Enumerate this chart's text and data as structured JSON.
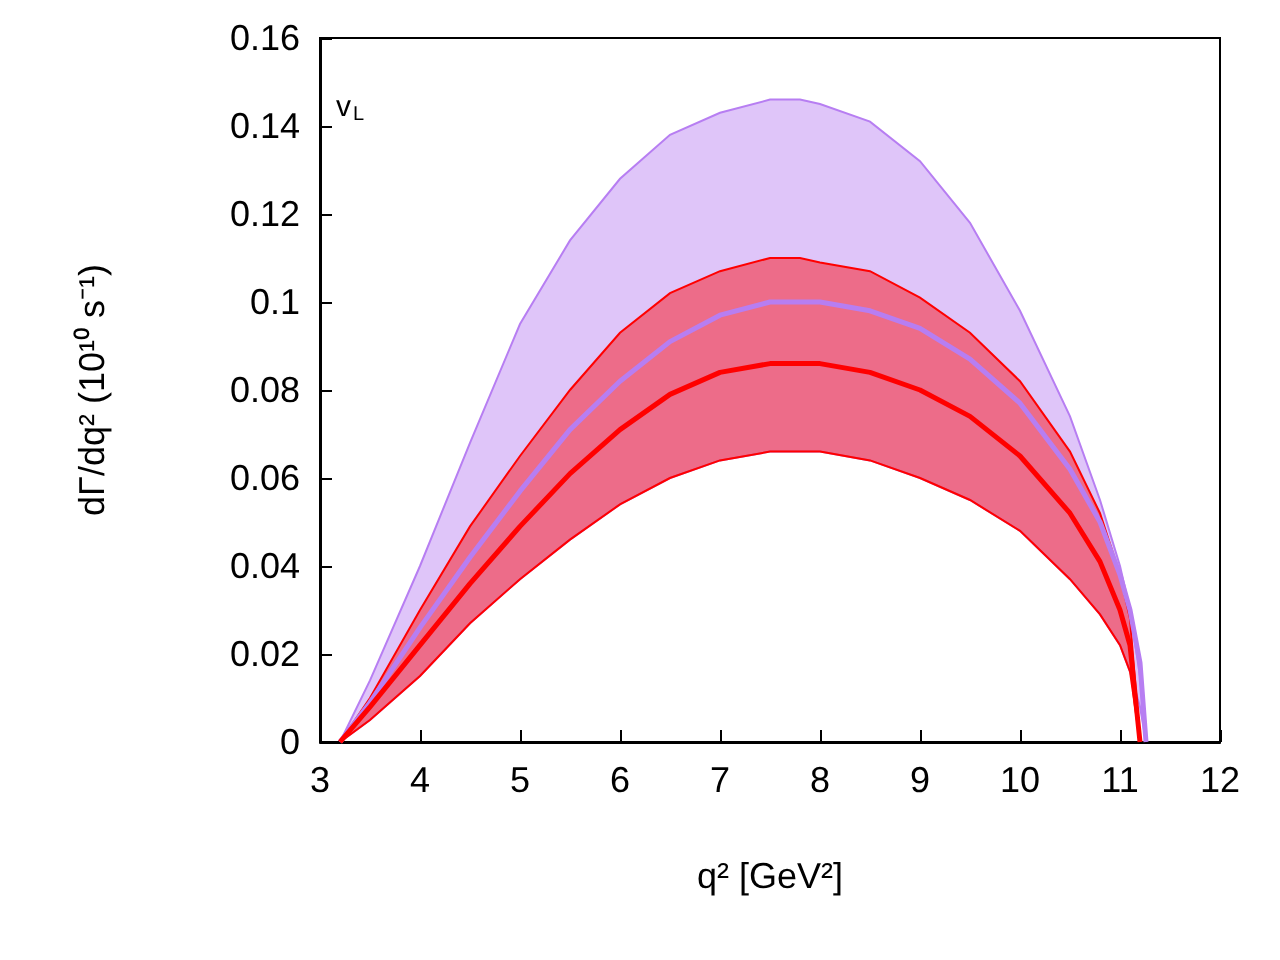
{
  "chart_data": {
    "type": "line",
    "xlabel": "q² [GeV²]",
    "ylabel": "dΓ/dq² (10¹⁰ s⁻¹)",
    "annotations": [
      "v$_{L}$"
    ],
    "xlim": [
      3,
      12
    ],
    "xticks": [
      3,
      4,
      5,
      6,
      7,
      8,
      9,
      10,
      11,
      12
    ],
    "ylim": [
      0,
      0.16
    ],
    "yticks": [
      0,
      0.02,
      0.04,
      0.06,
      0.08,
      0.1,
      0.12,
      0.14,
      0.16
    ],
    "series": [
      {
        "color": "#b77ef2",
        "x": [
          3.2,
          3.5,
          4,
          4.5,
          5,
          5.5,
          6,
          6.5,
          7,
          7.5,
          7.8,
          8,
          8.5,
          9,
          9.5,
          10,
          10.5,
          10.8,
          11,
          11.1,
          11.2,
          11.26
        ],
        "values": [
          0,
          0.009,
          0.026,
          0.042,
          0.057,
          0.071,
          0.082,
          0.091,
          0.097,
          0.1,
          0.1,
          0.1,
          0.098,
          0.094,
          0.087,
          0.077,
          0.062,
          0.05,
          0.038,
          0.03,
          0.018,
          0
        ],
        "lower": [
          0,
          0.005,
          0.015,
          0.027,
          0.037,
          0.046,
          0.054,
          0.06,
          0.064,
          0.066,
          0.066,
          0.066,
          0.064,
          0.06,
          0.055,
          0.048,
          0.037,
          0.029,
          0.022,
          0.016,
          0.008,
          0
        ],
        "upper": [
          0,
          0.014,
          0.04,
          0.068,
          0.095,
          0.114,
          0.128,
          0.138,
          0.143,
          0.146,
          0.146,
          0.145,
          0.141,
          0.132,
          0.118,
          0.098,
          0.074,
          0.055,
          0.04,
          0.03,
          0.015,
          0
        ]
      },
      {
        "color": "#ff0000",
        "x": [
          3.2,
          3.5,
          4,
          4.5,
          5,
          5.5,
          6,
          6.5,
          7,
          7.5,
          7.8,
          8,
          8.5,
          9,
          9.5,
          10,
          10.5,
          10.8,
          11,
          11.1,
          11.2
        ],
        "values": [
          0,
          0.008,
          0.022,
          0.036,
          0.049,
          0.061,
          0.071,
          0.079,
          0.084,
          0.086,
          0.086,
          0.086,
          0.084,
          0.08,
          0.074,
          0.065,
          0.052,
          0.041,
          0.03,
          0.022,
          0
        ],
        "lower": [
          0,
          0.005,
          0.015,
          0.027,
          0.037,
          0.046,
          0.054,
          0.06,
          0.064,
          0.066,
          0.066,
          0.066,
          0.064,
          0.06,
          0.055,
          0.048,
          0.037,
          0.029,
          0.022,
          0.016,
          0
        ],
        "upper": [
          0,
          0.01,
          0.03,
          0.049,
          0.065,
          0.08,
          0.093,
          0.102,
          0.107,
          0.11,
          0.11,
          0.109,
          0.107,
          0.101,
          0.093,
          0.082,
          0.066,
          0.052,
          0.038,
          0.028,
          0
        ]
      }
    ]
  }
}
